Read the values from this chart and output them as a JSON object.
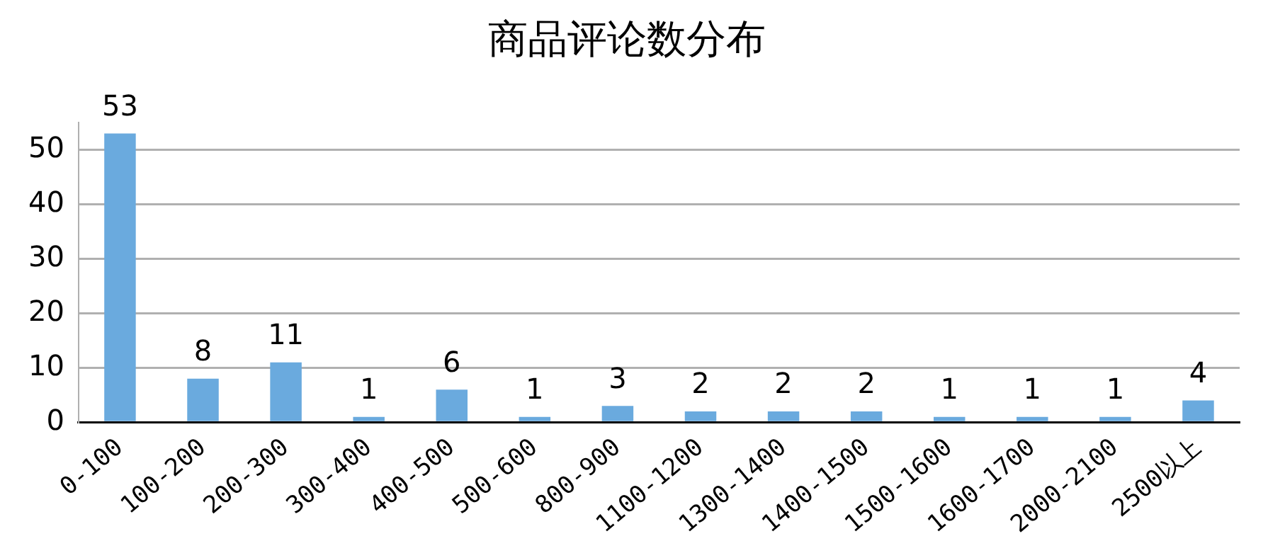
{
  "chart_data": {
    "type": "bar",
    "title": "商品评论数分布",
    "categories": [
      "0-100",
      "100-200",
      "200-300",
      "300-400",
      "400-500",
      "500-600",
      "800-900",
      "1100-1200",
      "1300-1400",
      "1400-1500",
      "1500-1600",
      "1600-1700",
      "2000-2100",
      "2500以上"
    ],
    "values": [
      53,
      8,
      11,
      1,
      6,
      1,
      3,
      2,
      2,
      2,
      1,
      1,
      1,
      4
    ],
    "color": "#6aaade",
    "ylim": [
      0,
      55
    ],
    "yticks": [
      0,
      10,
      20,
      30,
      40,
      50
    ],
    "grid": "y",
    "data_labels": true,
    "legend": false
  }
}
